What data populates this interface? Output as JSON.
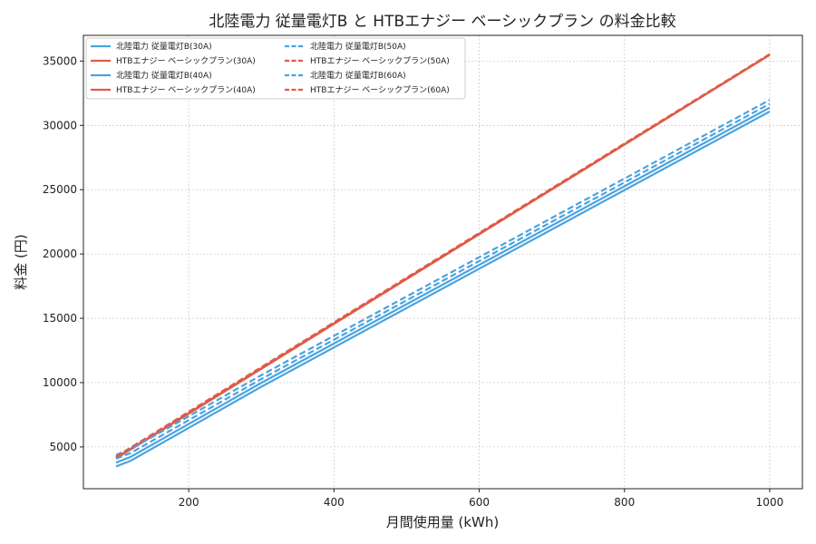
{
  "chart_data": {
    "type": "line",
    "title": "北陸電力 従量電灯B と HTBエナジー ベーシックプラン の料金比較",
    "xlabel": "月間使用量 (kWh)",
    "ylabel": "料金 (円)",
    "xlim": [
      55,
      1045
    ],
    "ylim": [
      1750,
      37000
    ],
    "xticks": [
      200,
      400,
      600,
      800,
      1000
    ],
    "yticks": [
      5000,
      10000,
      15000,
      20000,
      25000,
      30000,
      35000
    ],
    "grid": true,
    "legend_position": "top-left",
    "legend_columns": 2,
    "colors": {
      "hokuriku": "#4aa3df",
      "htb": "#e05a47"
    },
    "series": [
      {
        "name": "北陸電力 従量電灯B(30A)",
        "color": "#4aa3df",
        "dash": "solid",
        "x": [
          100,
          120,
          300,
          1000
        ],
        "y": [
          3480,
          3920,
          9680,
          31080
        ]
      },
      {
        "name": "HTBエナジー ベーシックプラン(30A)",
        "color": "#e05a47",
        "dash": "solid",
        "x": [
          100,
          1000
        ],
        "y": [
          4100,
          35480
        ]
      },
      {
        "name": "北陸電力 従量電灯B(40A)",
        "color": "#4aa3df",
        "dash": "solid",
        "x": [
          100,
          120,
          300,
          1000
        ],
        "y": [
          3780,
          4220,
          9980,
          31380
        ]
      },
      {
        "name": "HTBエナジー ベーシックプラン(40A)",
        "color": "#e05a47",
        "dash": "solid",
        "x": [
          100,
          1000
        ],
        "y": [
          4150,
          35500
        ]
      },
      {
        "name": "北陸電力 従量電灯B(50A)",
        "color": "#4aa3df",
        "dash": "dashed",
        "x": [
          100,
          120,
          300,
          1000
        ],
        "y": [
          4080,
          4520,
          10280,
          31680
        ]
      },
      {
        "name": "HTBエナジー ベーシックプラン(50A)",
        "color": "#e05a47",
        "dash": "dashed",
        "x": [
          100,
          1000
        ],
        "y": [
          4200,
          35520
        ]
      },
      {
        "name": "北陸電力 従量電灯B(60A)",
        "color": "#4aa3df",
        "dash": "dashed",
        "x": [
          100,
          120,
          300,
          1000
        ],
        "y": [
          4380,
          4820,
          10580,
          31980
        ]
      },
      {
        "name": "HTBエナジー ベーシックプラン(60A)",
        "color": "#e05a47",
        "dash": "dashed",
        "x": [
          100,
          1000
        ],
        "y": [
          4250,
          35540
        ]
      }
    ]
  }
}
